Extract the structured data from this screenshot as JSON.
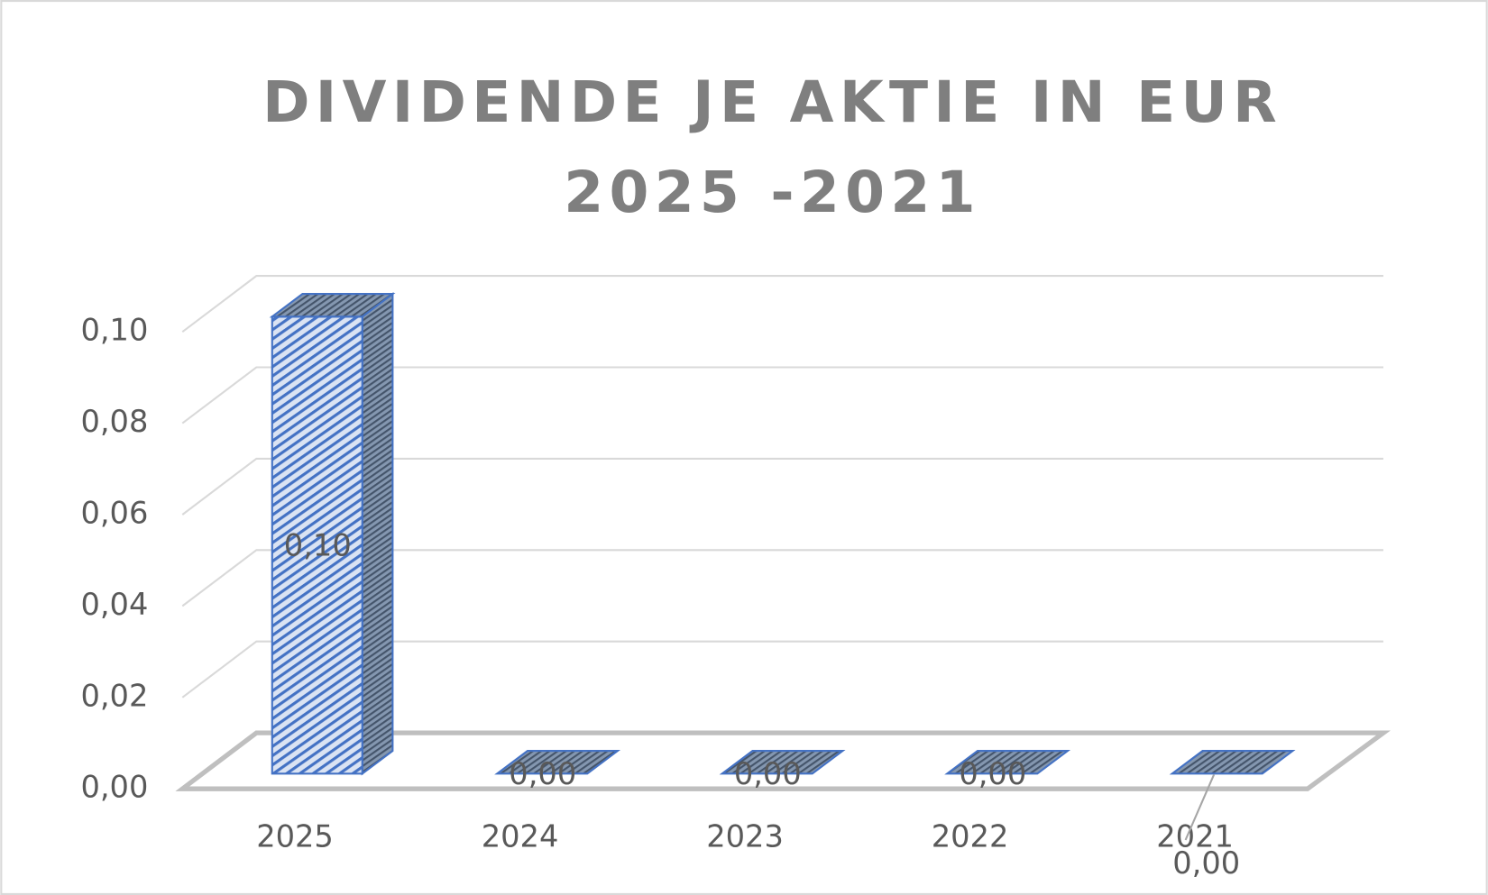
{
  "chart_data": {
    "type": "bar3d",
    "title": [
      "DIVIDENDE JE AKTIE IN EUR",
      "2025 -2021"
    ],
    "categories": [
      "2025",
      "2024",
      "2023",
      "2022",
      "2021"
    ],
    "values": [
      0.1,
      0,
      0,
      0,
      0
    ],
    "value_labels": [
      "0,10",
      "0,00",
      "0,00",
      "0,00",
      "0,00"
    ],
    "color": "#4472c4",
    "ylim": [
      0,
      0.1
    ],
    "yticks": [
      {
        "value": 0,
        "label": "0,00"
      },
      {
        "value": 0.02,
        "label": "0,02"
      },
      {
        "value": 0.04,
        "label": "0,04"
      },
      {
        "value": 0.06,
        "label": "0,06"
      },
      {
        "value": 0.08,
        "label": "0,08"
      },
      {
        "value": 0.1,
        "label": "0,10"
      }
    ],
    "grid": true
  }
}
